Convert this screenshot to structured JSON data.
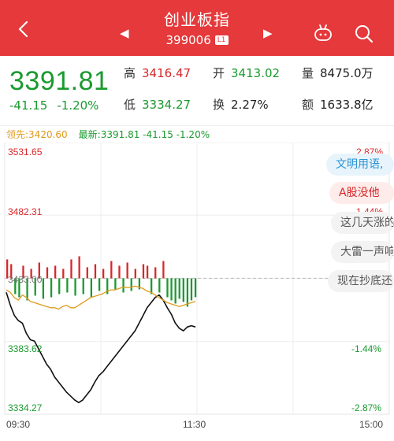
{
  "header": {
    "title": "创业板指",
    "code": "399006",
    "badge": "L1",
    "bg_color": "#e5393b",
    "icons": [
      "back-icon",
      "prev-arrow-icon",
      "next-arrow-icon",
      "robot-icon",
      "search-icon"
    ]
  },
  "quote": {
    "price": "3391.81",
    "change": "-41.15",
    "change_pct": "-1.20%",
    "high_label": "高",
    "high": "3416.47",
    "low_label": "低",
    "low": "3334.27",
    "open_label": "开",
    "open": "3413.02",
    "turnover_label": "换",
    "turnover": "2.27%",
    "volume_label": "量",
    "volume": "8475.0万",
    "amount_label": "额",
    "amount": "1633.8亿"
  },
  "info": {
    "lead": "领先:3420.60",
    "latest": "最新:3391.81 -41.15 -1.20%"
  },
  "chart_data": {
    "type": "line",
    "y_left_ticks": [
      "3531.65",
      "3482.31",
      "3433.00",
      "3383.62",
      "3334.27"
    ],
    "y_right_ticks": [
      "2.87%",
      "1.44%",
      "-1.44%",
      "-2.87%"
    ],
    "x_ticks": [
      "09:30",
      "11:30",
      "15:00"
    ],
    "ylim": [
      3334.27,
      3531.65
    ],
    "prev_close": 3433.0,
    "series": [
      {
        "values": [
          3422,
          3412,
          3404,
          3400,
          3398,
          3390,
          3385,
          3384,
          3378,
          3372,
          3366,
          3362,
          3356,
          3352,
          3348,
          3344,
          3341,
          3338,
          3336,
          3338,
          3342,
          3346,
          3352,
          3357,
          3360,
          3364,
          3368,
          3372,
          3376,
          3380,
          3384,
          3388,
          3392,
          3398,
          3404,
          3410,
          3414,
          3418,
          3420,
          3416,
          3410,
          3405,
          3398,
          3394,
          3392,
          3395,
          3396,
          3395
        ],
        "color": "#111111"
      },
      {
        "values": [
          3424,
          3422,
          3418,
          3416,
          3420,
          3418,
          3415,
          3414,
          3413,
          3412,
          3411,
          3410,
          3410,
          3409,
          3411,
          3412,
          3410,
          3410,
          3412,
          3414,
          3416,
          3418,
          3419,
          3420,
          3421,
          3423,
          3424,
          3424,
          3425,
          3426,
          3426,
          3426,
          3427,
          3426,
          3425,
          3423,
          3422,
          3420,
          3418,
          3416,
          3414,
          3413,
          3412,
          3411,
          3412,
          3413,
          3414,
          3415
        ],
        "color": "#e09a1c"
      }
    ],
    "volume_bars": [
      0.6,
      0.45,
      -0.5,
      -0.6,
      0.4,
      -0.7,
      0.3,
      -0.55,
      0.5,
      -0.65,
      0.35,
      -0.6,
      0.4,
      -0.5,
      0.3,
      -0.45,
      0.6,
      -0.55,
      0.7,
      -0.5,
      0.35,
      -0.6,
      0.45,
      -0.4,
      0.3,
      -0.5,
      0.55,
      -0.35,
      0.4,
      -0.45,
      0.5,
      -0.4,
      0.3,
      -0.35,
      0.45,
      0.4,
      -0.5,
      0.35,
      -0.45,
      0.55,
      -0.6,
      -0.7,
      -0.8,
      -0.65,
      -0.75,
      -0.9,
      -0.7,
      -0.6
    ]
  },
  "bullets": [
    "文明用语,",
    "A股没他",
    "这几天涨的",
    "大雷一声响",
    "现在抄底还"
  ]
}
